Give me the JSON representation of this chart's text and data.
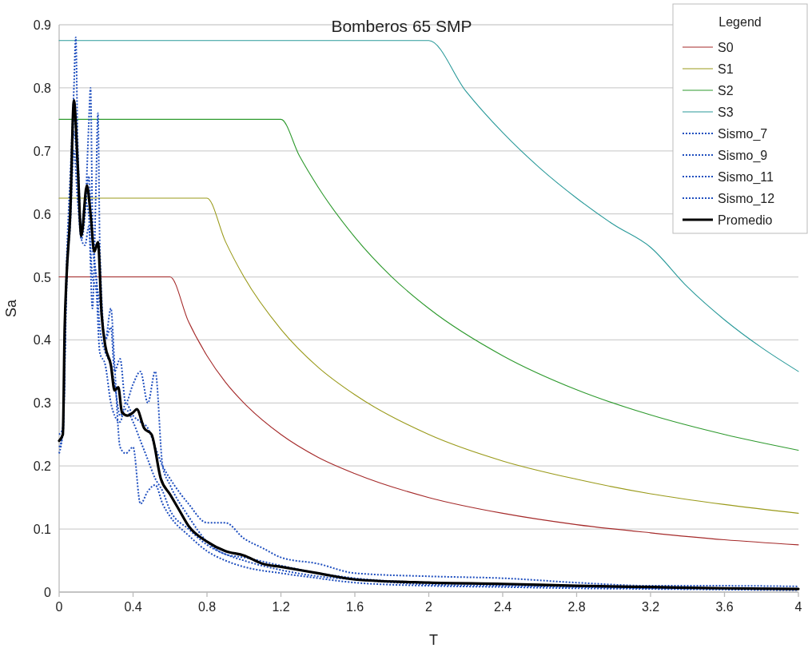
{
  "chart_data": {
    "type": "line",
    "title": "Bomberos 65 SMP",
    "xlabel": "T",
    "ylabel": "Sa",
    "legend_title": "Legend",
    "xlim": [
      0,
      4
    ],
    "xticks": [
      0,
      0.4,
      0.8,
      1.2,
      1.6,
      2,
      2.4,
      2.8,
      3.2,
      3.6,
      4
    ],
    "ylim": [
      0,
      0.9
    ],
    "yticks": [
      0,
      0.1,
      0.2,
      0.3,
      0.4,
      0.5,
      0.6,
      0.7,
      0.8,
      0.9
    ],
    "grid": "y",
    "legend": "top right",
    "series": [
      {
        "name": "S0",
        "color": "#a52a2a",
        "line_style": "solid",
        "x": [
          0,
          0.6,
          0.7,
          0.8,
          0.9,
          1.0,
          1.2,
          1.4,
          1.6,
          2.0,
          2.4,
          2.8,
          3.2,
          3.6,
          4.0
        ],
        "values": [
          0.5,
          0.5,
          0.429,
          0.375,
          0.333,
          0.3,
          0.25,
          0.214,
          0.188,
          0.15,
          0.125,
          0.107,
          0.094,
          0.083,
          0.075
        ]
      },
      {
        "name": "S1",
        "color": "#9a9a1a",
        "line_style": "solid",
        "x": [
          0,
          0.8,
          0.9,
          1.0,
          1.2,
          1.4,
          1.6,
          2.0,
          2.4,
          2.8,
          3.2,
          3.6,
          4.0
        ],
        "values": [
          0.625,
          0.625,
          0.556,
          0.5,
          0.417,
          0.357,
          0.313,
          0.25,
          0.208,
          0.179,
          0.156,
          0.139,
          0.125
        ]
      },
      {
        "name": "S2",
        "color": "#2e9a2e",
        "line_style": "solid",
        "x": [
          0,
          1.2,
          1.3,
          1.4,
          1.6,
          1.8,
          2.0,
          2.4,
          2.8,
          3.2,
          3.6,
          4.0
        ],
        "values": [
          0.75,
          0.75,
          0.692,
          0.643,
          0.563,
          0.5,
          0.45,
          0.375,
          0.321,
          0.281,
          0.25,
          0.225
        ]
      },
      {
        "name": "S3",
        "color": "#2a9a9a",
        "line_style": "solid",
        "x": [
          0,
          2.0,
          2.2,
          2.4,
          2.6,
          2.8,
          3.0,
          3.2,
          3.4,
          3.6,
          3.8,
          4.0
        ],
        "values": [
          0.875,
          0.875,
          0.795,
          0.729,
          0.673,
          0.625,
          0.583,
          0.547,
          0.484,
          0.432,
          0.388,
          0.35
        ]
      },
      {
        "name": "Sismo_7",
        "color": "#1f4fbf",
        "line_style": "dotted",
        "x": [
          0,
          0.02,
          0.04,
          0.06,
          0.08,
          0.09,
          0.1,
          0.12,
          0.14,
          0.16,
          0.18,
          0.2,
          0.22,
          0.25,
          0.28,
          0.3,
          0.33,
          0.36,
          0.4,
          0.44,
          0.48,
          0.52,
          0.56,
          0.6,
          0.7,
          0.8,
          0.9,
          1.0,
          1.2,
          1.4,
          1.6,
          2.0,
          2.4,
          2.8,
          3.2,
          3.6,
          4.0
        ],
        "values": [
          0.22,
          0.26,
          0.52,
          0.66,
          0.8,
          0.88,
          0.72,
          0.58,
          0.6,
          0.66,
          0.55,
          0.5,
          0.42,
          0.38,
          0.36,
          0.33,
          0.28,
          0.29,
          0.27,
          0.24,
          0.21,
          0.18,
          0.16,
          0.13,
          0.1,
          0.075,
          0.06,
          0.05,
          0.035,
          0.025,
          0.02,
          0.012,
          0.01,
          0.008,
          0.006,
          0.005,
          0.004
        ]
      },
      {
        "name": "Sismo_9",
        "color": "#1f4fbf",
        "line_style": "dotted",
        "x": [
          0,
          0.02,
          0.04,
          0.06,
          0.08,
          0.1,
          0.12,
          0.14,
          0.16,
          0.17,
          0.18,
          0.2,
          0.22,
          0.25,
          0.28,
          0.3,
          0.33,
          0.36,
          0.4,
          0.44,
          0.48,
          0.52,
          0.56,
          0.6,
          0.7,
          0.8,
          0.9,
          1.0,
          1.2,
          1.4,
          1.6,
          2.0,
          2.4,
          2.8,
          3.2,
          3.6,
          4.0
        ],
        "values": [
          0.24,
          0.25,
          0.48,
          0.62,
          0.73,
          0.66,
          0.56,
          0.6,
          0.74,
          0.8,
          0.6,
          0.5,
          0.46,
          0.4,
          0.45,
          0.36,
          0.23,
          0.22,
          0.23,
          0.14,
          0.16,
          0.17,
          0.14,
          0.12,
          0.09,
          0.065,
          0.05,
          0.04,
          0.03,
          0.022,
          0.015,
          0.01,
          0.008,
          0.006,
          0.005,
          0.004,
          0.003
        ]
      },
      {
        "name": "Sismo_11",
        "color": "#1f4fbf",
        "line_style": "dotted",
        "x": [
          0,
          0.02,
          0.04,
          0.06,
          0.08,
          0.1,
          0.12,
          0.14,
          0.16,
          0.18,
          0.2,
          0.21,
          0.22,
          0.25,
          0.28,
          0.3,
          0.33,
          0.36,
          0.4,
          0.44,
          0.48,
          0.52,
          0.56,
          0.6,
          0.7,
          0.8,
          0.9,
          1.0,
          1.2,
          1.4,
          1.6,
          2.0,
          2.4,
          2.8,
          3.2,
          3.6,
          4.0
        ],
        "values": [
          0.23,
          0.25,
          0.5,
          0.6,
          0.75,
          0.7,
          0.57,
          0.62,
          0.6,
          0.45,
          0.65,
          0.76,
          0.55,
          0.4,
          0.42,
          0.35,
          0.37,
          0.3,
          0.33,
          0.35,
          0.3,
          0.35,
          0.2,
          0.17,
          0.12,
          0.08,
          0.06,
          0.055,
          0.042,
          0.03,
          0.022,
          0.015,
          0.012,
          0.009,
          0.007,
          0.006,
          0.005
        ]
      },
      {
        "name": "Sismo_12",
        "color": "#1f4fbf",
        "line_style": "dotted",
        "x": [
          0,
          0.02,
          0.04,
          0.06,
          0.08,
          0.1,
          0.12,
          0.14,
          0.16,
          0.18,
          0.2,
          0.22,
          0.25,
          0.28,
          0.3,
          0.33,
          0.36,
          0.4,
          0.44,
          0.48,
          0.52,
          0.56,
          0.6,
          0.7,
          0.8,
          0.9,
          1.0,
          1.1,
          1.2,
          1.4,
          1.6,
          2.0,
          2.4,
          2.8,
          3.2,
          3.6,
          4.0
        ],
        "values": [
          0.25,
          0.26,
          0.5,
          0.58,
          0.7,
          0.62,
          0.56,
          0.55,
          0.58,
          0.5,
          0.48,
          0.38,
          0.36,
          0.3,
          0.28,
          0.27,
          0.3,
          0.28,
          0.27,
          0.26,
          0.23,
          0.2,
          0.18,
          0.14,
          0.11,
          0.11,
          0.085,
          0.07,
          0.055,
          0.045,
          0.03,
          0.025,
          0.022,
          0.015,
          0.01,
          0.01,
          0.009
        ]
      },
      {
        "name": "Promedio",
        "color": "#000000",
        "line_style": "solid",
        "x": [
          0,
          0.02,
          0.03,
          0.04,
          0.06,
          0.08,
          0.1,
          0.12,
          0.15,
          0.17,
          0.19,
          0.21,
          0.23,
          0.25,
          0.28,
          0.3,
          0.32,
          0.34,
          0.37,
          0.4,
          0.42,
          0.46,
          0.5,
          0.55,
          0.6,
          0.65,
          0.7,
          0.8,
          0.9,
          1.0,
          1.1,
          1.2,
          1.4,
          1.6,
          2.0,
          2.4,
          2.8,
          3.2,
          3.6,
          4.0
        ],
        "values": [
          0.24,
          0.25,
          0.42,
          0.5,
          0.6,
          0.78,
          0.68,
          0.565,
          0.645,
          0.6,
          0.54,
          0.555,
          0.44,
          0.39,
          0.36,
          0.32,
          0.325,
          0.285,
          0.28,
          0.285,
          0.29,
          0.26,
          0.25,
          0.18,
          0.155,
          0.13,
          0.105,
          0.08,
          0.065,
          0.058,
          0.045,
          0.04,
          0.03,
          0.02,
          0.015,
          0.013,
          0.01,
          0.008,
          0.006,
          0.005
        ]
      }
    ]
  }
}
